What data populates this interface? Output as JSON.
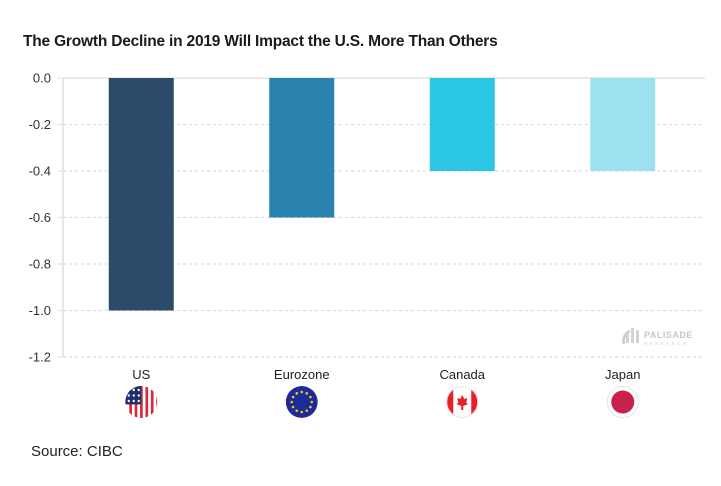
{
  "chart_data": {
    "type": "bar",
    "title": "The Growth Decline in 2019 Will Impact the U.S. More Than Others",
    "categories": [
      "US",
      "Eurozone",
      "Canada",
      "Japan"
    ],
    "values": [
      -1.0,
      -0.6,
      -0.4,
      -0.4
    ],
    "colors": [
      "#2d4a6b",
      "#2a82ae",
      "#2ac6e4",
      "#9be1f0"
    ],
    "category_icons": [
      "us-flag-icon",
      "eu-flag-icon",
      "canada-flag-icon",
      "japan-flag-icon"
    ],
    "xlabel": "",
    "ylabel": "",
    "ylim": [
      -1.2,
      0.0
    ],
    "yticks": [
      0.0,
      -0.2,
      -0.4,
      -0.6,
      -0.8,
      -1.0,
      -1.2
    ],
    "ytick_labels": [
      "0.0",
      "-0.2",
      "-0.4",
      "-0.6",
      "-0.8",
      "-1.0",
      "-1.2"
    ],
    "grid": true,
    "legend": "none"
  },
  "watermark": {
    "line1": "PALISADE",
    "line2": "RESEARCH"
  },
  "source": "Source: CIBC"
}
